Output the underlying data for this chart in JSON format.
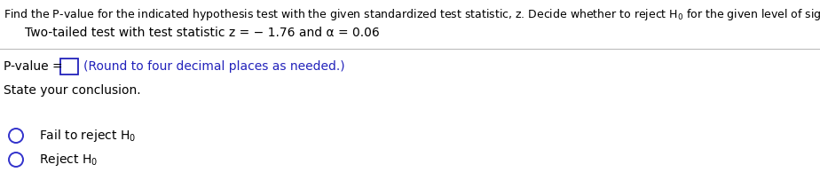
{
  "line1": "Find the P-value for the indicated hypothesis test with the given standardized test statistic, z. Decide whether to reject H$_0$ for the given level of significance α.",
  "line2": "Two-tailed test with test statistic z = − 1.76 and α = 0.06",
  "pvalue_label": "P-value = ",
  "pvalue_hint": "(Round to four decimal places as needed.)",
  "state_conclusion": "State your conclusion.",
  "option1": "Fail to reject H$_0$",
  "option2": "Reject H$_0$",
  "bg_color": "#ffffff",
  "text_color": "#000000",
  "blue_color": "#2222bb",
  "hint_color": "#2222bb",
  "line_color": "#bbbbbb",
  "header_fontsize": 9.0,
  "body_fontsize": 10.0,
  "circle_color": "#3333cc"
}
